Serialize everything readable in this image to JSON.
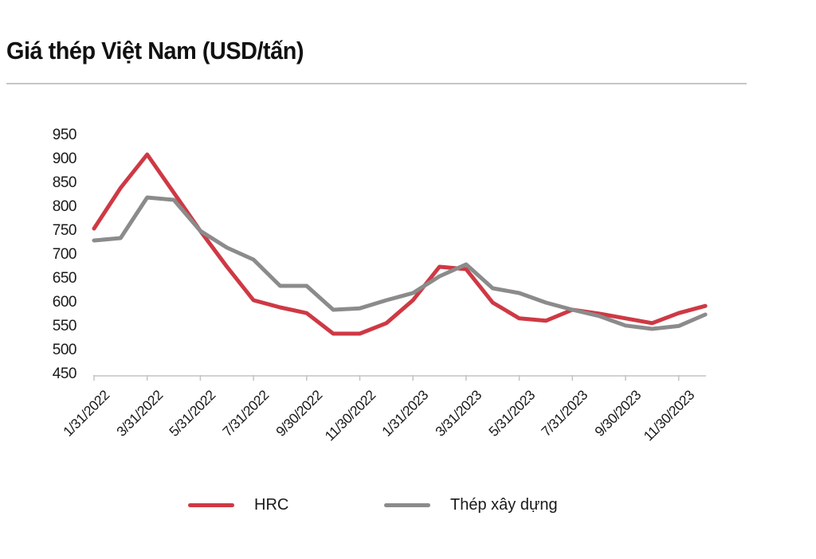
{
  "title": "Giá thép Việt Nam (USD/tấn)",
  "chart_data": {
    "type": "line",
    "title": "Giá thép Việt Nam (USD/tấn)",
    "unit": "USD/tấn",
    "grid": false,
    "legend_position": "bottom",
    "ylim": [
      450,
      950
    ],
    "yticks": [
      950,
      900,
      850,
      800,
      750,
      700,
      650,
      600,
      550,
      500,
      450
    ],
    "xticklabels": [
      "1/31/2022",
      "3/31/2022",
      "5/31/2022",
      "7/31/2022",
      "9/30/2022",
      "11/30/2022",
      "1/31/2023",
      "3/31/2023",
      "5/31/2023",
      "7/31/2023",
      "9/30/2023",
      "11/30/2023"
    ],
    "categories": [
      "1/31/2022",
      "2/28/2022",
      "3/31/2022",
      "4/30/2022",
      "5/31/2022",
      "6/30/2022",
      "7/31/2022",
      "8/31/2022",
      "9/30/2022",
      "10/31/2022",
      "11/30/2022",
      "12/31/2022",
      "1/31/2023",
      "2/28/2023",
      "3/31/2023",
      "4/30/2023",
      "5/31/2023",
      "6/30/2023",
      "7/31/2023",
      "8/31/2023",
      "9/30/2023",
      "10/31/2023",
      "11/30/2023",
      "12/31/2023"
    ],
    "axis_color": "#c3c3c3",
    "text_color": "#1a1a1a",
    "series": [
      {
        "name": "HRC",
        "color": "#ce3944",
        "values": [
          755,
          840,
          910,
          830,
          750,
          675,
          605,
          590,
          578,
          535,
          535,
          557,
          605,
          675,
          670,
          600,
          567,
          562,
          585,
          577,
          567,
          557,
          578,
          593
        ]
      },
      {
        "name": "Thép xây dựng",
        "color": "#8b8b8b",
        "values": [
          730,
          735,
          820,
          815,
          750,
          715,
          690,
          635,
          635,
          585,
          588,
          605,
          620,
          655,
          680,
          630,
          620,
          600,
          585,
          572,
          552,
          545,
          551,
          575
        ]
      }
    ]
  }
}
